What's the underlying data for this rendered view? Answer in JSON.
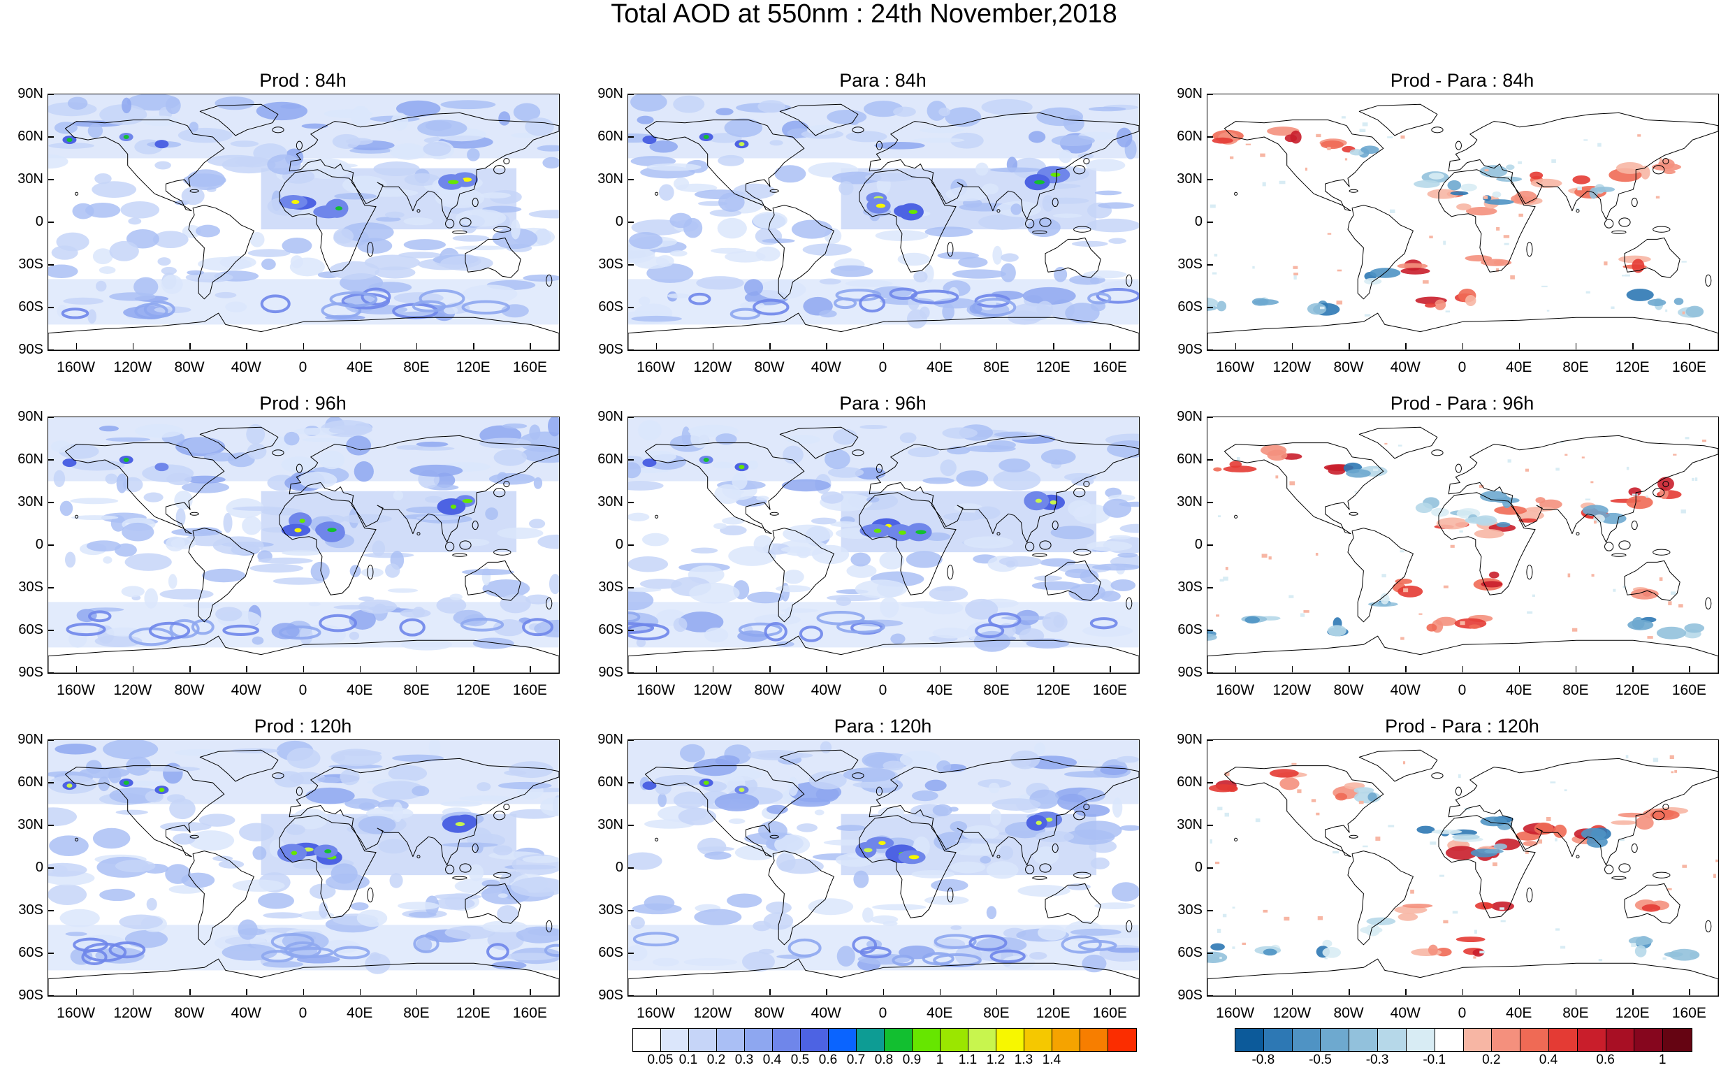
{
  "title": "Total AOD at 550nm : 24th November,2018",
  "lat_labels": [
    "90N",
    "60N",
    "30N",
    "0",
    "30S",
    "60S",
    "90S"
  ],
  "lon_labels": [
    "160W",
    "120W",
    "80W",
    "40W",
    "0",
    "40E",
    "80E",
    "120E",
    "160E"
  ],
  "panels": [
    {
      "title": "Prod : 84h",
      "kind": "aod",
      "variant": 1
    },
    {
      "title": "Para : 84h",
      "kind": "aod",
      "variant": 2
    },
    {
      "title": "Prod - Para : 84h",
      "kind": "diff",
      "variant": 3
    },
    {
      "title": "Prod : 96h",
      "kind": "aod",
      "variant": 4
    },
    {
      "title": "Para : 96h",
      "kind": "aod",
      "variant": 5
    },
    {
      "title": "Prod - Para : 96h",
      "kind": "diff",
      "variant": 6
    },
    {
      "title": "Prod : 120h",
      "kind": "aod",
      "variant": 7
    },
    {
      "title": "Para : 120h",
      "kind": "aod",
      "variant": 8
    },
    {
      "title": "Prod - Para : 120h",
      "kind": "diff",
      "variant": 9
    }
  ],
  "colorbar_aod": {
    "colors": [
      "#ffffff",
      "#dbe6fb",
      "#c6d5f8",
      "#aabff5",
      "#8ea7f0",
      "#6f86ea",
      "#4d63e3",
      "#0a64ff",
      "#0d9c94",
      "#12bf30",
      "#66e600",
      "#9be600",
      "#c8f54e",
      "#f7f700",
      "#f5c800",
      "#f5a300",
      "#f77e00",
      "#fb2d00"
    ],
    "labels": [
      "0.05",
      "0.1",
      "0.2",
      "0.3",
      "0.4",
      "0.5",
      "0.6",
      "0.7",
      "0.8",
      "0.9",
      "1",
      "1.1",
      "1.2",
      "1.3",
      "1.4"
    ]
  },
  "colorbar_diff": {
    "colors": [
      "#0c5a9a",
      "#2d78b4",
      "#4f93c4",
      "#6ea9cf",
      "#92c1dc",
      "#b6d8e9",
      "#d8ecf4",
      "#ffffff",
      "#f7b6a4",
      "#f4907d",
      "#ef6a55",
      "#e43b34",
      "#c91e2b",
      "#a80f24",
      "#86061e",
      "#650412"
    ],
    "labels": [
      "-0.8",
      "-0.5",
      "-0.3",
      "-0.1",
      "0.2",
      "0.4",
      "0.6",
      "1"
    ]
  }
}
